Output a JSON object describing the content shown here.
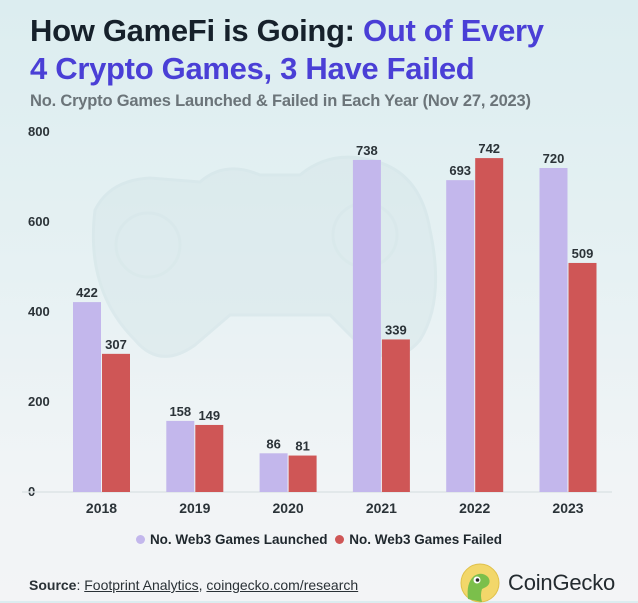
{
  "title": {
    "part1": "How GameFi is Going: ",
    "part2": "Out of Every",
    "line2": "4 Crypto Games, 3 Have Failed"
  },
  "subtitle": "No. Crypto Games Launched & Failed in Each Year (Nov 27, 2023)",
  "colors": {
    "launched": "#c3b7ec",
    "failed": "#cf5656",
    "accent": "#4a3fd6"
  },
  "chart_data": {
    "type": "bar",
    "title": "How GameFi is Going: Out of Every 4 Crypto Games, 3 Have Failed",
    "subtitle": "No. Crypto Games Launched & Failed in Each Year (Nov 27, 2023)",
    "xlabel": "",
    "ylabel": "",
    "categories": [
      "2018",
      "2019",
      "2020",
      "2021",
      "2022",
      "2023"
    ],
    "series": [
      {
        "name": "No. Web3 Games Launched",
        "color": "#c3b7ec",
        "values": [
          422,
          158,
          86,
          738,
          693,
          720
        ]
      },
      {
        "name": "No. Web3 Games Failed",
        "color": "#cf5656",
        "values": [
          307,
          149,
          81,
          339,
          742,
          509
        ]
      }
    ],
    "ylim": [
      0,
      800
    ],
    "yticks": [
      "0",
      "200",
      "400",
      "600",
      "800"
    ],
    "grid": false,
    "legend": "bottom-center"
  },
  "legend": {
    "launched": "No. Web3 Games Launched",
    "failed": "No. Web3 Games Failed"
  },
  "footer": {
    "source_label": "Source",
    "source_sep": ": ",
    "link1": "Footprint Analytics",
    "comma": ", ",
    "link2": "coingecko.com/research",
    "brand": "CoinGecko"
  }
}
